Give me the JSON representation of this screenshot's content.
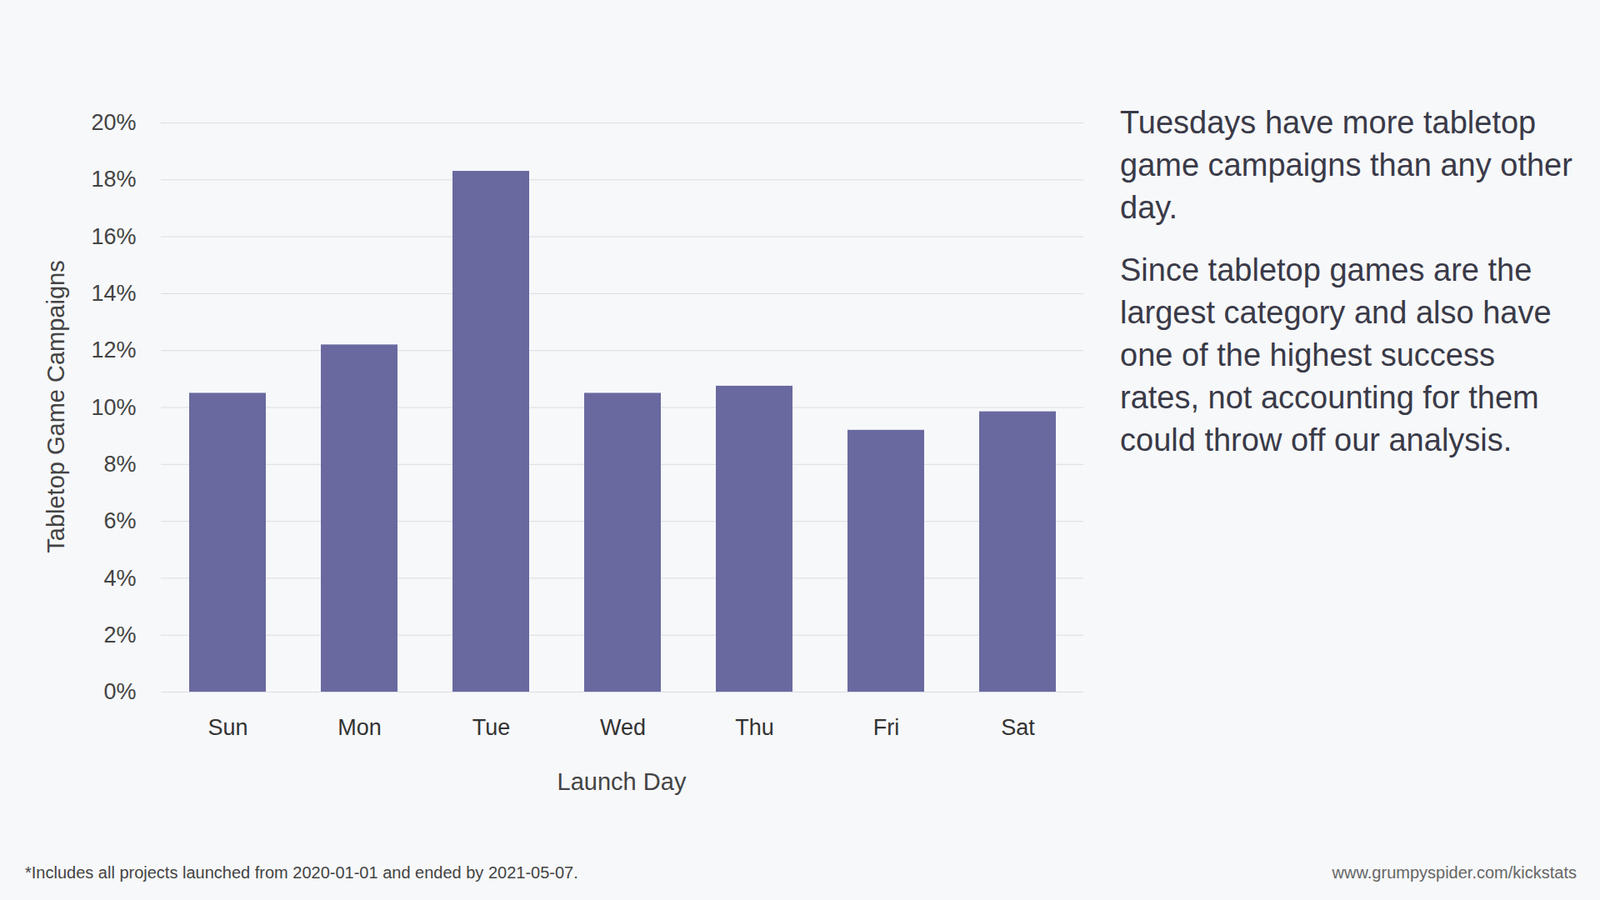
{
  "chart_data": {
    "type": "bar",
    "y_label": "Tabletop Game Campaigns",
    "x_label": "Launch Day",
    "categories": [
      "Sun",
      "Mon",
      "Tue",
      "Wed",
      "Thu",
      "Fri",
      "Sat"
    ],
    "values": [
      10.5,
      12.2,
      18.3,
      10.5,
      10.75,
      9.2,
      9.85
    ],
    "color": "#6969a0",
    "ylim": [
      0,
      20
    ],
    "yticks": [
      {
        "value": 0,
        "label": "0%"
      },
      {
        "value": 2,
        "label": "2%"
      },
      {
        "value": 4,
        "label": "4%"
      },
      {
        "value": 6,
        "label": "6%"
      },
      {
        "value": 8,
        "label": "8%"
      },
      {
        "value": 10,
        "label": "10%"
      },
      {
        "value": 12,
        "label": "12%"
      },
      {
        "value": 14,
        "label": "14%"
      },
      {
        "value": 16,
        "label": "16%"
      },
      {
        "value": 18,
        "label": "18%"
      },
      {
        "value": 20,
        "label": "20%"
      }
    ],
    "grid": true,
    "annotations": [
      "Tuesdays have more tabletop game campaigns than any other day.",
      "Since tabletop games are the largest category and also have one of the highest success rates, not accounting for them could throw off our analysis."
    ],
    "footnote": "*Includes all projects launched from 2020-01-01 and ended by 2021-05-07.",
    "source": "www.grumpyspider.com/kickstats"
  }
}
